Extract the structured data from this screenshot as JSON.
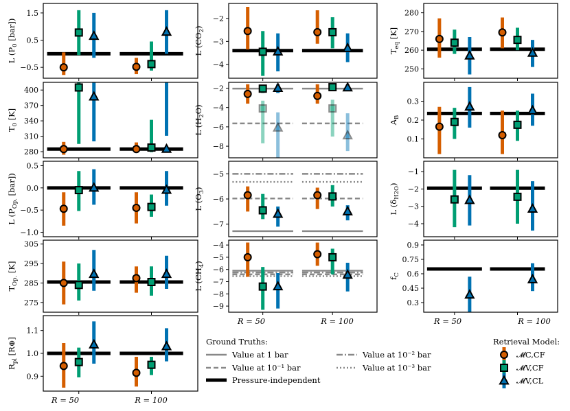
{
  "colors": {
    "C": "#d55e00",
    "V": "#009e73",
    "L": "#0072b2",
    "truth": "#000000",
    "level": "#888888",
    "faded_level": "#aaaaaa"
  },
  "chart_data": [
    {
      "type": "errorbar",
      "panel": "P0",
      "ylabel": "L (P0 [bar])",
      "ylim": [
        -0.9,
        1.85
      ],
      "yticks": [
        1.5,
        0.5,
        -0.5
      ],
      "ytick_labels": [
        "1.5",
        "0.5",
        "−0.5"
      ],
      "truth": {
        "pressure_independent": 0.0
      },
      "points": [
        {
          "model": "C",
          "res": 0,
          "y": -0.5,
          "lo": -0.78,
          "hi": 0.05
        },
        {
          "model": "V",
          "res": 0,
          "y": 0.78,
          "lo": -0.05,
          "hi": 1.6
        },
        {
          "model": "L",
          "res": 0,
          "y": 0.65,
          "lo": -0.15,
          "hi": 1.5
        },
        {
          "model": "C",
          "res": 1,
          "y": -0.48,
          "lo": -0.75,
          "hi": -0.15
        },
        {
          "model": "V",
          "res": 1,
          "y": -0.38,
          "lo": -0.62,
          "hi": 0.45
        },
        {
          "model": "L",
          "res": 1,
          "y": 0.8,
          "lo": 0.0,
          "hi": 1.6
        }
      ]
    },
    {
      "type": "errorbar",
      "panel": "CO2",
      "ylabel": "L (CO2)",
      "ylim": [
        -4.6,
        -1.35
      ],
      "yticks": [
        -2,
        -3,
        -4
      ],
      "ytick_labels": [
        "−2",
        "−3",
        "−4"
      ],
      "truth": {
        "pressure_independent": -3.4
      },
      "points": [
        {
          "model": "C",
          "res": 0,
          "y": -2.55,
          "lo": -3.35,
          "hi": -1.5
        },
        {
          "model": "V",
          "res": 0,
          "y": -3.45,
          "lo": -4.5,
          "hi": -2.55
        },
        {
          "model": "L",
          "res": 0,
          "y": -3.45,
          "lo": -4.3,
          "hi": -2.65
        },
        {
          "model": "C",
          "res": 1,
          "y": -2.6,
          "lo": -3.1,
          "hi": -1.65
        },
        {
          "model": "V",
          "res": 1,
          "y": -2.6,
          "lo": -3.3,
          "hi": -1.95
        },
        {
          "model": "L",
          "res": 1,
          "y": -3.3,
          "lo": -3.9,
          "hi": -2.65
        }
      ]
    },
    {
      "type": "errorbar",
      "panel": "Teq",
      "ylabel": "Teq [K]",
      "ylim": [
        245,
        285
      ],
      "yticks": [
        280,
        270,
        260,
        250
      ],
      "ytick_labels": [
        "280",
        "270",
        "260",
        "250"
      ],
      "truth": {
        "pressure_independent": 260.5
      },
      "points": [
        {
          "model": "C",
          "res": 0,
          "y": 266,
          "lo": 256,
          "hi": 277
        },
        {
          "model": "V",
          "res": 0,
          "y": 264,
          "lo": 258,
          "hi": 271
        },
        {
          "model": "L",
          "res": 0,
          "y": 257,
          "lo": 247,
          "hi": 267
        },
        {
          "model": "C",
          "res": 1,
          "y": 269.5,
          "lo": 261,
          "hi": 277.5
        },
        {
          "model": "V",
          "res": 1,
          "y": 265.5,
          "lo": 260,
          "hi": 272
        },
        {
          "model": "L",
          "res": 1,
          "y": 258.5,
          "lo": 251,
          "hi": 265.5
        }
      ]
    },
    {
      "type": "errorbar",
      "panel": "T0",
      "ylabel": "T0 [K]",
      "ylim": [
        268,
        415
      ],
      "yticks": [
        400,
        370,
        340,
        310,
        280
      ],
      "ytick_labels": [
        "400",
        "370",
        "340",
        "310",
        "280"
      ],
      "truth": {
        "pressure_independent": 285
      },
      "points": [
        {
          "model": "C",
          "res": 0,
          "y": 285,
          "lo": 274,
          "hi": 299
        },
        {
          "model": "V",
          "res": 0,
          "y": 405,
          "lo": 295,
          "hi": 415
        },
        {
          "model": "L",
          "res": 0,
          "y": 387,
          "lo": 300,
          "hi": 415
        },
        {
          "model": "C",
          "res": 1,
          "y": 285,
          "lo": 278,
          "hi": 298
        },
        {
          "model": "V",
          "res": 1,
          "y": 288,
          "lo": 279,
          "hi": 342
        },
        {
          "model": "L",
          "res": 1,
          "y": 285,
          "lo": 311,
          "hi": 415
        }
      ]
    },
    {
      "type": "errorbar",
      "panel": "H2O",
      "ylabel": "L (H2O)",
      "ylim": [
        -9.2,
        -1.4
      ],
      "yticks": [
        -2,
        -4,
        -6,
        -8
      ],
      "ytick_labels": [
        "−2",
        "−4",
        "−6",
        "−8"
      ],
      "truth": {
        "at_1bar": -2.05,
        "at_0.1bar": -5.65
      },
      "points": [
        {
          "model": "C",
          "res": 0,
          "y": -2.6,
          "lo": -3.6,
          "hi": -1.6
        },
        {
          "model": "V",
          "res": 0,
          "y": -2.05,
          "lo": -2.5,
          "hi": -1.65
        },
        {
          "model": "L",
          "res": 0,
          "y": -2.0,
          "lo": -2.5,
          "hi": -1.6
        },
        {
          "model": "V",
          "res": 0,
          "y": -4.1,
          "lo": -7.7,
          "hi": -3.3,
          "faded": true
        },
        {
          "model": "L",
          "res": 0,
          "y": -6.1,
          "lo": -9.2,
          "hi": -4.5,
          "faded": true
        },
        {
          "model": "C",
          "res": 1,
          "y": -2.8,
          "lo": -3.6,
          "hi": -1.6
        },
        {
          "model": "V",
          "res": 1,
          "y": -1.9,
          "lo": -2.3,
          "hi": -1.6
        },
        {
          "model": "L",
          "res": 1,
          "y": -1.95,
          "lo": -2.3,
          "hi": -1.6
        },
        {
          "model": "V",
          "res": 1,
          "y": -4.1,
          "lo": -7.0,
          "hi": -3.2,
          "faded": true
        },
        {
          "model": "L",
          "res": 1,
          "y": -6.9,
          "lo": -8.5,
          "hi": -4.6,
          "faded": true
        }
      ]
    },
    {
      "type": "errorbar",
      "panel": "AB",
      "ylabel": "AB",
      "ylim": [
        0.0,
        0.4
      ],
      "yticks": [
        0.3,
        0.2,
        0.1
      ],
      "ytick_labels": [
        "0.3",
        "0.2",
        "0.1"
      ],
      "truth": {
        "pressure_independent": 0.235
      },
      "points": [
        {
          "model": "C",
          "res": 0,
          "y": 0.165,
          "lo": 0.02,
          "hi": 0.27
        },
        {
          "model": "V",
          "res": 0,
          "y": 0.19,
          "lo": 0.1,
          "hi": 0.265
        },
        {
          "model": "L",
          "res": 0,
          "y": 0.27,
          "lo": 0.16,
          "hi": 0.375
        },
        {
          "model": "C",
          "res": 1,
          "y": 0.12,
          "lo": 0.02,
          "hi": 0.25
        },
        {
          "model": "V",
          "res": 1,
          "y": 0.175,
          "lo": 0.09,
          "hi": 0.25
        },
        {
          "model": "L",
          "res": 1,
          "y": 0.25,
          "lo": 0.17,
          "hi": 0.34
        }
      ]
    },
    {
      "type": "errorbar",
      "panel": "POp",
      "ylabel": "L (POp. [bar])",
      "ylim": [
        -1.1,
        0.6
      ],
      "yticks": [
        0.5,
        0.0,
        -0.5,
        -1.0
      ],
      "ytick_labels": [
        "0.5",
        "0.0",
        "−0.5",
        "−1.0"
      ],
      "truth": {
        "pressure_independent": 0.0
      },
      "points": [
        {
          "model": "C",
          "res": 0,
          "y": -0.47,
          "lo": -0.85,
          "hi": -0.1
        },
        {
          "model": "V",
          "res": 0,
          "y": -0.05,
          "lo": -0.52,
          "hi": 0.38
        },
        {
          "model": "L",
          "res": 0,
          "y": 0.0,
          "lo": -0.38,
          "hi": 0.42
        },
        {
          "model": "C",
          "res": 1,
          "y": -0.45,
          "lo": -0.8,
          "hi": -0.1
        },
        {
          "model": "V",
          "res": 1,
          "y": -0.43,
          "lo": -0.65,
          "hi": -0.15
        },
        {
          "model": "L",
          "res": 1,
          "y": -0.05,
          "lo": -0.4,
          "hi": 0.38
        }
      ]
    },
    {
      "type": "errorbar",
      "panel": "O3",
      "ylabel": "L (O3)",
      "ylim": [
        -7.5,
        -4.5
      ],
      "yticks": [
        -5,
        -6,
        -7
      ],
      "ytick_labels": [
        "−5",
        "−6",
        "−7"
      ],
      "truth": {
        "at_1bar": -7.28,
        "at_0.1bar": -5.98,
        "at_0.01bar": -5.0,
        "at_0.001bar": -5.32
      },
      "points": [
        {
          "model": "C",
          "res": 0,
          "y": -5.85,
          "lo": -6.5,
          "hi": -5.5
        },
        {
          "model": "V",
          "res": 0,
          "y": -6.45,
          "lo": -6.8,
          "hi": -5.8
        },
        {
          "model": "L",
          "res": 0,
          "y": -6.6,
          "lo": -7.1,
          "hi": -6.3
        },
        {
          "model": "C",
          "res": 1,
          "y": -5.85,
          "lo": -6.4,
          "hi": -5.55
        },
        {
          "model": "V",
          "res": 1,
          "y": -5.9,
          "lo": -6.3,
          "hi": -5.45
        },
        {
          "model": "L",
          "res": 1,
          "y": -6.5,
          "lo": -6.85,
          "hi": -6.25
        }
      ]
    },
    {
      "type": "errorbar",
      "panel": "dH2O",
      "ylabel": "L (δH2O)",
      "ylim": [
        -4.75,
        -0.4
      ],
      "yticks": [
        -1,
        -2,
        -3,
        -4
      ],
      "ytick_labels": [
        "−1",
        "−2",
        "−3",
        "−4"
      ],
      "truth": {
        "pressure_independent": -1.95
      },
      "points": [
        {
          "model": "V",
          "res": 0,
          "y": -2.6,
          "lo": -4.2,
          "hi": -0.9
        },
        {
          "model": "L",
          "res": 0,
          "y": -2.65,
          "lo": -4.1,
          "hi": -1.2
        },
        {
          "model": "V",
          "res": 1,
          "y": -2.45,
          "lo": -4.0,
          "hi": -0.9
        },
        {
          "model": "L",
          "res": 1,
          "y": -3.15,
          "lo": -4.4,
          "hi": -1.55
        }
      ]
    },
    {
      "type": "errorbar",
      "panel": "TOp",
      "ylabel": "TOp. [K]",
      "ylim": [
        270,
        307
      ],
      "yticks": [
        305,
        295,
        285,
        275
      ],
      "ytick_labels": [
        "305",
        "295",
        "285",
        "275"
      ],
      "truth": {
        "pressure_independent": 285.5
      },
      "points": [
        {
          "model": "C",
          "res": 0,
          "y": 285,
          "lo": 274,
          "hi": 296
        },
        {
          "model": "V",
          "res": 0,
          "y": 284,
          "lo": 276,
          "hi": 295
        },
        {
          "model": "L",
          "res": 0,
          "y": 289.5,
          "lo": 281,
          "hi": 302
        },
        {
          "model": "C",
          "res": 1,
          "y": 287.5,
          "lo": 280,
          "hi": 293.5
        },
        {
          "model": "V",
          "res": 1,
          "y": 285.5,
          "lo": 278.5,
          "hi": 293.5
        },
        {
          "model": "L",
          "res": 1,
          "y": 289.5,
          "lo": 282,
          "hi": 299
        }
      ]
    },
    {
      "type": "errorbar",
      "panel": "CH4",
      "ylabel": "L (CH4)",
      "ylim": [
        -9.5,
        -3.6
      ],
      "yticks": [
        -4,
        -5,
        -6,
        -7,
        -8,
        -9
      ],
      "ytick_labels": [
        "−4",
        "−5",
        "−6",
        "−7",
        "−8",
        "−9"
      ],
      "truth": {
        "at_1bar": -6.1,
        "at_0.1bar": -6.4,
        "at_0.01bar": -6.25,
        "at_0.001bar": -6.55
      },
      "points": [
        {
          "model": "C",
          "res": 0,
          "y": -5.0,
          "lo": -6.6,
          "hi": -3.8
        },
        {
          "model": "V",
          "res": 0,
          "y": -7.4,
          "lo": -9.3,
          "hi": -5.8
        },
        {
          "model": "L",
          "res": 0,
          "y": -7.4,
          "lo": -9.2,
          "hi": -6.3
        },
        {
          "model": "C",
          "res": 1,
          "y": -4.75,
          "lo": -5.7,
          "hi": -3.8
        },
        {
          "model": "V",
          "res": 1,
          "y": -5.0,
          "lo": -6.4,
          "hi": -4.3
        },
        {
          "model": "L",
          "res": 1,
          "y": -6.45,
          "lo": -7.8,
          "hi": -5.45
        }
      ]
    },
    {
      "type": "errorbar",
      "panel": "fC",
      "ylabel": "fC",
      "ylim": [
        0.2,
        0.95
      ],
      "yticks": [
        0.9,
        0.75,
        0.6,
        0.45,
        0.3
      ],
      "ytick_labels": [
        "0.9",
        "0.75",
        "0.6",
        "0.45",
        "0.3"
      ],
      "truth": {
        "pressure_independent": 0.65
      },
      "points": [
        {
          "model": "L",
          "res": 0,
          "y": 0.38,
          "lo": 0.2,
          "hi": 0.57
        },
        {
          "model": "L",
          "res": 1,
          "y": 0.54,
          "lo": 0.42,
          "hi": 0.71
        }
      ]
    },
    {
      "type": "errorbar",
      "panel": "Rpl",
      "ylabel": "Rpl [R⊕]",
      "ylim": [
        0.835,
        1.165
      ],
      "yticks": [
        1.1,
        1.0,
        0.9
      ],
      "ytick_labels": [
        "1.1",
        "1.0",
        "0.9"
      ],
      "truth": {
        "pressure_independent": 1.0
      },
      "points": [
        {
          "model": "C",
          "res": 0,
          "y": 0.945,
          "lo": 0.85,
          "hi": 1.045
        },
        {
          "model": "V",
          "res": 0,
          "y": 0.962,
          "lo": 0.895,
          "hi": 1.025
        },
        {
          "model": "L",
          "res": 0,
          "y": 1.038,
          "lo": 0.955,
          "hi": 1.14
        },
        {
          "model": "C",
          "res": 1,
          "y": 0.915,
          "lo": 0.855,
          "hi": 0.985
        },
        {
          "model": "V",
          "res": 1,
          "y": 0.95,
          "lo": 0.905,
          "hi": 0.985
        },
        {
          "model": "L",
          "res": 1,
          "y": 1.03,
          "lo": 0.965,
          "hi": 1.11
        }
      ]
    }
  ],
  "x_categories": [
    "R = 50",
    "R = 100"
  ],
  "legend_truth": {
    "title": "Ground Truths:",
    "items": [
      "Value at 1 bar",
      "Value at 10⁻¹ bar",
      "Value at 10⁻² bar",
      "Value at 10⁻³ bar",
      "Pressure-independent"
    ]
  },
  "legend_models": {
    "title": "Retrieval Model:",
    "items": [
      "𝓜C,CF",
      "𝓜V,CF",
      "𝓜V,CL"
    ]
  }
}
